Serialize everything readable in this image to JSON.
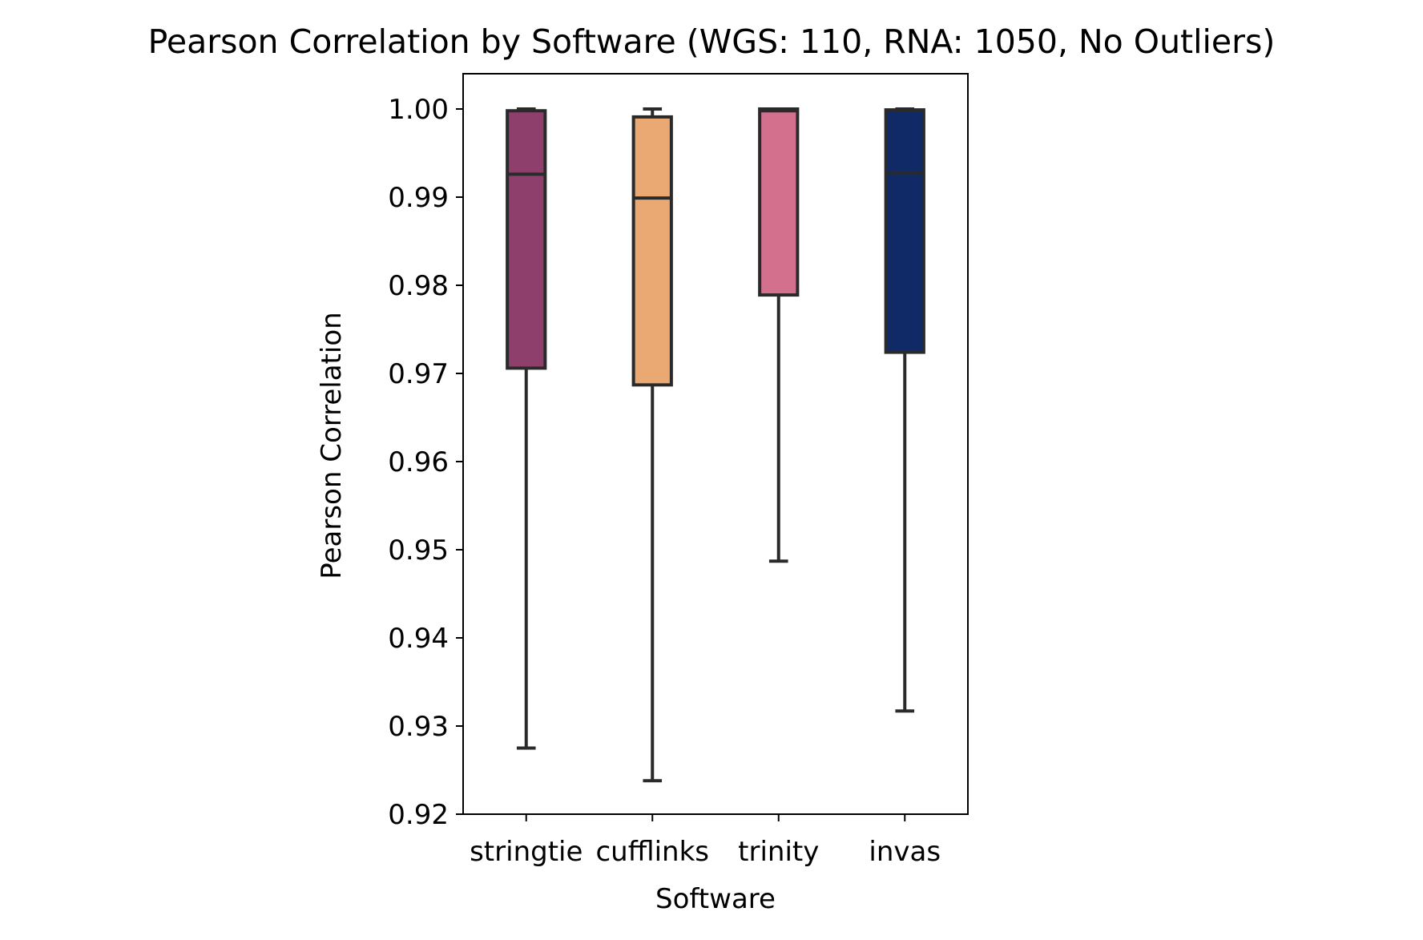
{
  "chart_data": {
    "type": "box",
    "title": "Pearson Correlation by Software (WGS: 110, RNA: 1050, No Outliers)",
    "xlabel": "Software",
    "ylabel": "Pearson Correlation",
    "ylim": [
      0.92,
      1.004
    ],
    "yticks": [
      "0.92",
      "0.93",
      "0.94",
      "0.95",
      "0.96",
      "0.97",
      "0.98",
      "0.99",
      "1.00"
    ],
    "grid": false,
    "categories": [
      "stringtie",
      "cufflinks",
      "trinity",
      "invas"
    ],
    "boxes": [
      {
        "category": "stringtie",
        "whisker_low": 0.9275,
        "q1": 0.9706,
        "median": 0.9926,
        "q3": 0.9998,
        "whisker_high": 1.0,
        "color": "#8f3f6b"
      },
      {
        "category": "cufflinks",
        "whisker_low": 0.9238,
        "q1": 0.9687,
        "median": 0.9899,
        "q3": 0.9991,
        "whisker_high": 1.0,
        "color": "#eaa872"
      },
      {
        "category": "trinity",
        "whisker_low": 0.9487,
        "q1": 0.9789,
        "median": 0.9998,
        "q3": 1.0,
        "whisker_high": 1.0,
        "color": "#d3708e"
      },
      {
        "category": "invas",
        "whisker_low": 0.9317,
        "q1": 0.9724,
        "median": 0.9927,
        "q3": 0.9999,
        "whisker_high": 1.0,
        "color": "#0f2a66"
      }
    ]
  }
}
